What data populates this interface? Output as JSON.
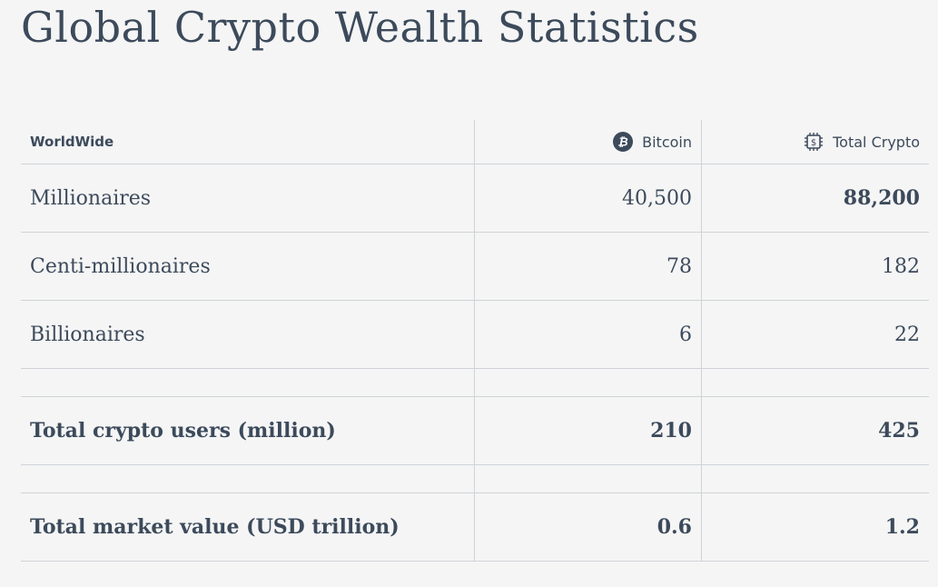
{
  "title": "Global Crypto Wealth Statistics",
  "header": {
    "region_label": "WorldWide",
    "col1_label": "Bitcoin",
    "col1_icon": "bitcoin-icon",
    "col2_label": "Total Crypto",
    "col2_icon": "crypto-chip-icon"
  },
  "rows": [
    {
      "label": "Millionaires",
      "bitcoin": "40,500",
      "total": "88,200"
    },
    {
      "label": "Centi-millionaires",
      "bitcoin": "78",
      "total": "182"
    },
    {
      "label": "Billionaires",
      "bitcoin": "6",
      "total": "22"
    }
  ],
  "totals": [
    {
      "label": "Total crypto users (million)",
      "bitcoin": "210",
      "total": "425"
    },
    {
      "label": "Total market value (USD trillion)",
      "bitcoin": "0.6",
      "total": "1.2"
    }
  ],
  "colors": {
    "text": "#3c4a5b",
    "background": "#f5f5f5",
    "border": "#cfd3d7"
  }
}
